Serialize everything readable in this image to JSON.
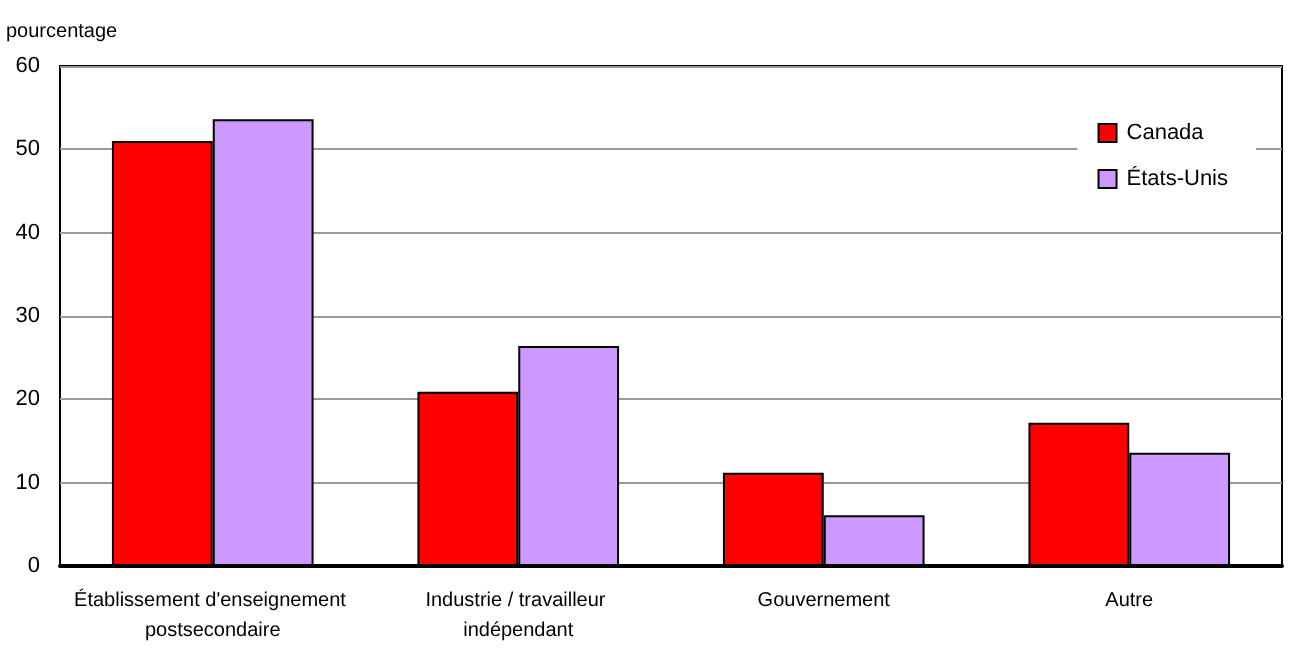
{
  "chart_data": {
    "type": "bar",
    "ylabel": "pourcentage",
    "categories": [
      "Établissement d'enseignement postsecondaire",
      "Industrie / travailleur indépendant",
      "Gouvernement",
      "Autre"
    ],
    "series": [
      {
        "name": "Canada",
        "color": "#ff0000",
        "values": [
          51.0,
          20.9,
          11.2,
          17.2
        ]
      },
      {
        "name": "États-Unis",
        "color": "#cc99ff",
        "values": [
          53.6,
          26.4,
          6.1,
          13.6
        ]
      }
    ],
    "ylim": [
      0,
      60
    ],
    "yticks": [
      0,
      10,
      20,
      30,
      40,
      50,
      60
    ],
    "grid": "y",
    "legend": "top right"
  }
}
